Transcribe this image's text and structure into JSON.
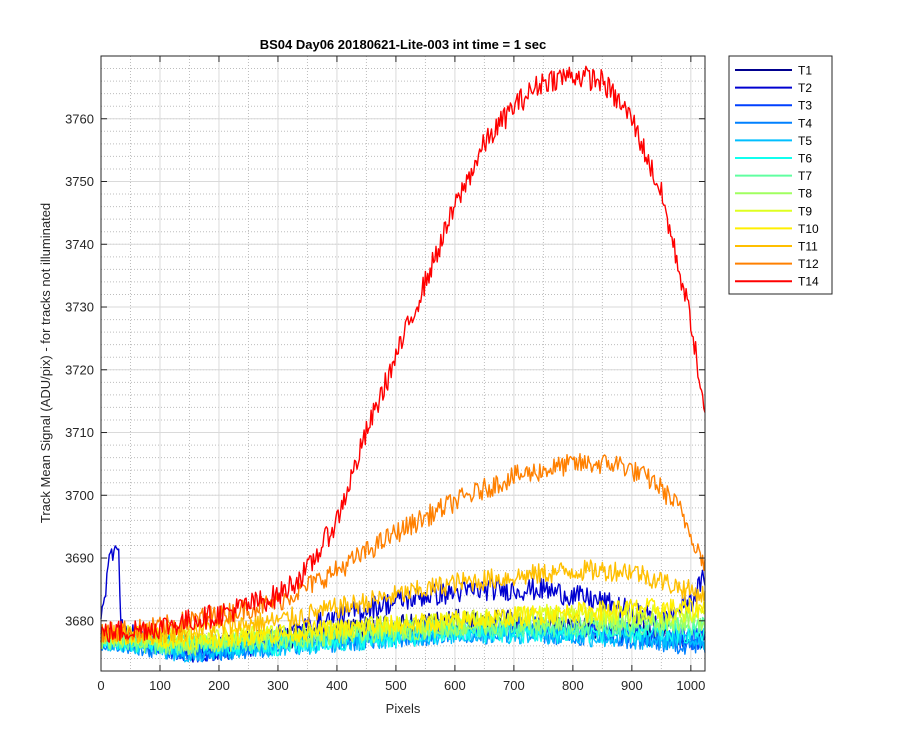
{
  "chart_data": {
    "type": "line",
    "title": "BS04 Day06 20180621-Lite-003 int time = 1 sec",
    "xlabel": "Pixels",
    "ylabel": "Track Mean Signal (ADU/pix) - for tracks not illuminated",
    "xlim": [
      0,
      1024
    ],
    "ylim": [
      3672,
      3770
    ],
    "x_ticks": [
      0,
      100,
      200,
      300,
      400,
      500,
      600,
      700,
      800,
      900,
      1000
    ],
    "y_ticks": [
      3680,
      3690,
      3700,
      3710,
      3720,
      3730,
      3740,
      3750,
      3760
    ],
    "grid": "major and minor",
    "legend_position": "outside-right",
    "series": [
      {
        "name": "T1",
        "color": "#00008f",
        "noise": 1.8,
        "points": [
          [
            0,
            3678
          ],
          [
            150,
            3676
          ],
          [
            300,
            3677
          ],
          [
            450,
            3679
          ],
          [
            600,
            3680
          ],
          [
            750,
            3680
          ],
          [
            900,
            3678
          ],
          [
            1024,
            3677
          ]
        ]
      },
      {
        "name": "T2",
        "color": "#0000d0",
        "noise": 1.8,
        "points": [
          [
            0,
            3682
          ],
          [
            6,
            3684
          ],
          [
            15,
            3690
          ],
          [
            22,
            3692
          ],
          [
            28,
            3693
          ],
          [
            30,
            3692
          ],
          [
            33,
            3679
          ],
          [
            40,
            3678
          ],
          [
            150,
            3675
          ],
          [
            250,
            3676
          ],
          [
            350,
            3679
          ],
          [
            450,
            3682
          ],
          [
            550,
            3684
          ],
          [
            650,
            3685
          ],
          [
            750,
            3685
          ],
          [
            850,
            3683
          ],
          [
            950,
            3680
          ],
          [
            1000,
            3683
          ],
          [
            1024,
            3687
          ]
        ]
      },
      {
        "name": "T3",
        "color": "#0040ff",
        "noise": 1.8,
        "points": [
          [
            0,
            3678
          ],
          [
            150,
            3675
          ],
          [
            300,
            3677
          ],
          [
            450,
            3678
          ],
          [
            600,
            3679
          ],
          [
            750,
            3679
          ],
          [
            900,
            3678
          ],
          [
            1024,
            3677
          ]
        ]
      },
      {
        "name": "T4",
        "color": "#0080ff",
        "noise": 1.7,
        "points": [
          [
            0,
            3677
          ],
          [
            150,
            3675
          ],
          [
            300,
            3676
          ],
          [
            450,
            3677
          ],
          [
            600,
            3678
          ],
          [
            750,
            3678
          ],
          [
            900,
            3677
          ],
          [
            1024,
            3676
          ]
        ]
      },
      {
        "name": "T5",
        "color": "#00bfff",
        "noise": 1.7,
        "points": [
          [
            0,
            3677
          ],
          [
            150,
            3675
          ],
          [
            300,
            3676
          ],
          [
            450,
            3677
          ],
          [
            600,
            3678
          ],
          [
            750,
            3678
          ],
          [
            900,
            3677
          ],
          [
            1024,
            3677
          ]
        ]
      },
      {
        "name": "T6",
        "color": "#10ffef",
        "noise": 1.6,
        "points": [
          [
            0,
            3677
          ],
          [
            150,
            3676
          ],
          [
            300,
            3676
          ],
          [
            450,
            3677
          ],
          [
            600,
            3678
          ],
          [
            750,
            3678
          ],
          [
            900,
            3678
          ],
          [
            1024,
            3678
          ]
        ]
      },
      {
        "name": "T7",
        "color": "#60ffa0",
        "noise": 1.6,
        "points": [
          [
            0,
            3677
          ],
          [
            150,
            3676
          ],
          [
            300,
            3677
          ],
          [
            450,
            3678
          ],
          [
            600,
            3679
          ],
          [
            750,
            3679
          ],
          [
            900,
            3679
          ],
          [
            1024,
            3679
          ]
        ]
      },
      {
        "name": "T8",
        "color": "#a0ff60",
        "noise": 1.6,
        "points": [
          [
            0,
            3677
          ],
          [
            150,
            3676
          ],
          [
            300,
            3677
          ],
          [
            450,
            3678
          ],
          [
            600,
            3679
          ],
          [
            750,
            3680
          ],
          [
            900,
            3680
          ],
          [
            1024,
            3680
          ]
        ]
      },
      {
        "name": "T9",
        "color": "#dfff20",
        "noise": 1.6,
        "points": [
          [
            0,
            3678
          ],
          [
            150,
            3677
          ],
          [
            300,
            3678
          ],
          [
            450,
            3679
          ],
          [
            600,
            3680
          ],
          [
            750,
            3681
          ],
          [
            900,
            3681
          ],
          [
            1024,
            3681
          ]
        ]
      },
      {
        "name": "T10",
        "color": "#ffef00",
        "noise": 1.6,
        "points": [
          [
            0,
            3678
          ],
          [
            150,
            3677
          ],
          [
            300,
            3678
          ],
          [
            450,
            3679
          ],
          [
            600,
            3680
          ],
          [
            750,
            3681
          ],
          [
            900,
            3682
          ],
          [
            1024,
            3682
          ]
        ]
      },
      {
        "name": "T11",
        "color": "#ffbf00",
        "noise": 1.7,
        "points": [
          [
            0,
            3678
          ],
          [
            100,
            3678
          ],
          [
            200,
            3679
          ],
          [
            300,
            3680
          ],
          [
            400,
            3682
          ],
          [
            500,
            3684
          ],
          [
            600,
            3686
          ],
          [
            700,
            3687
          ],
          [
            800,
            3688
          ],
          [
            900,
            3688
          ],
          [
            960,
            3686
          ],
          [
            1024,
            3684
          ]
        ]
      },
      {
        "name": "T12",
        "color": "#ff8000",
        "noise": 1.7,
        "points": [
          [
            0,
            3678
          ],
          [
            100,
            3679
          ],
          [
            200,
            3681
          ],
          [
            300,
            3683
          ],
          [
            400,
            3688
          ],
          [
            500,
            3694
          ],
          [
            600,
            3699
          ],
          [
            700,
            3703
          ],
          [
            800,
            3705
          ],
          [
            880,
            3705
          ],
          [
            940,
            3702
          ],
          [
            980,
            3698
          ],
          [
            1024,
            3689
          ]
        ]
      },
      {
        "name": "T14",
        "color": "#ff0000",
        "noise": 1.9,
        "points": [
          [
            0,
            3678
          ],
          [
            100,
            3679
          ],
          [
            200,
            3681
          ],
          [
            300,
            3684
          ],
          [
            350,
            3688
          ],
          [
            400,
            3696
          ],
          [
            450,
            3710
          ],
          [
            500,
            3722
          ],
          [
            550,
            3734
          ],
          [
            600,
            3746
          ],
          [
            650,
            3756
          ],
          [
            700,
            3762
          ],
          [
            750,
            3766
          ],
          [
            800,
            3767
          ],
          [
            850,
            3766
          ],
          [
            900,
            3760
          ],
          [
            950,
            3748
          ],
          [
            1000,
            3728
          ],
          [
            1024,
            3712
          ]
        ]
      }
    ]
  }
}
